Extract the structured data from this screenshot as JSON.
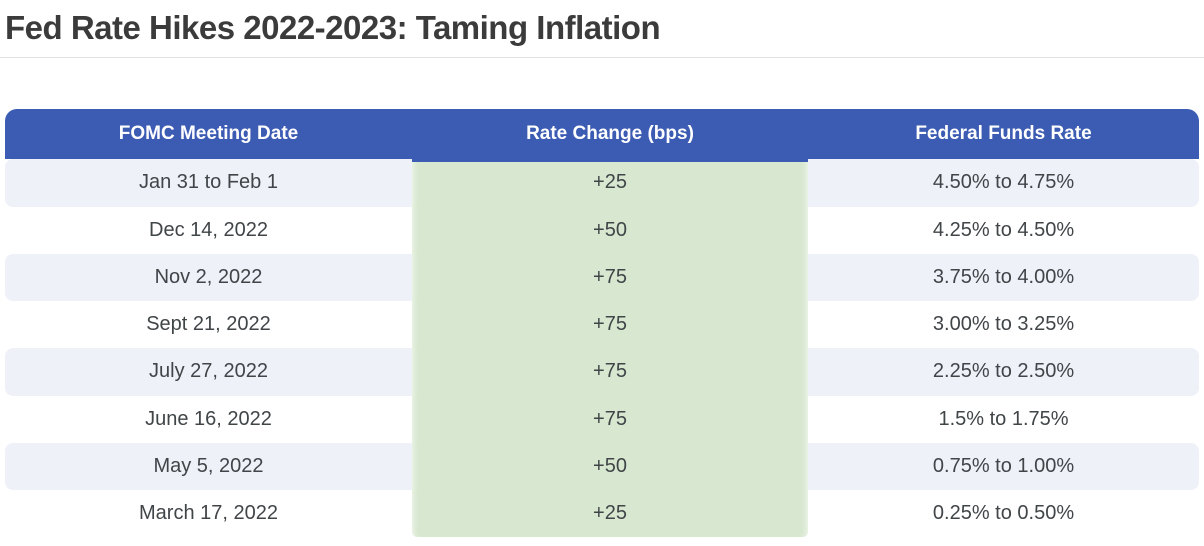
{
  "page": {
    "title": "Fed Rate Hikes 2022-2023: Taming Inflation"
  },
  "chart_data": {
    "type": "table",
    "title": "Fed Rate Hikes 2022-2023: Taming Inflation",
    "columns": [
      "FOMC Meeting Date",
      "Rate Change (bps)",
      "Federal Funds Rate"
    ],
    "highlighted_column": "Rate Change (bps)",
    "rows": [
      [
        "Jan 31 to Feb 1",
        "+25",
        "4.50% to 4.75%"
      ],
      [
        "Dec 14, 2022",
        "+50",
        "4.25% to 4.50%"
      ],
      [
        "Nov 2, 2022",
        "+75",
        "3.75% to 4.00%"
      ],
      [
        "Sept 21, 2022",
        "+75",
        "3.00% to 3.25%"
      ],
      [
        "July 27, 2022",
        "+75",
        "2.25% to 2.50%"
      ],
      [
        "June 16, 2022",
        "+75",
        "1.5% to 1.75%"
      ],
      [
        "May 5, 2022",
        "+50",
        "0.75% to 1.00%"
      ],
      [
        "March 17, 2022",
        "+25",
        "0.25% to 0.50%"
      ]
    ],
    "rate_change_bps": [
      25,
      50,
      75,
      75,
      75,
      75,
      50,
      25
    ]
  },
  "colors": {
    "header_bg": "#3c5cb3",
    "header_text": "#ffffff",
    "highlight_column_bg": "#d8e8d0",
    "row_stripe_bg": "#eef1f8",
    "title_text": "#3b3b3b",
    "cell_text": "#404548"
  }
}
